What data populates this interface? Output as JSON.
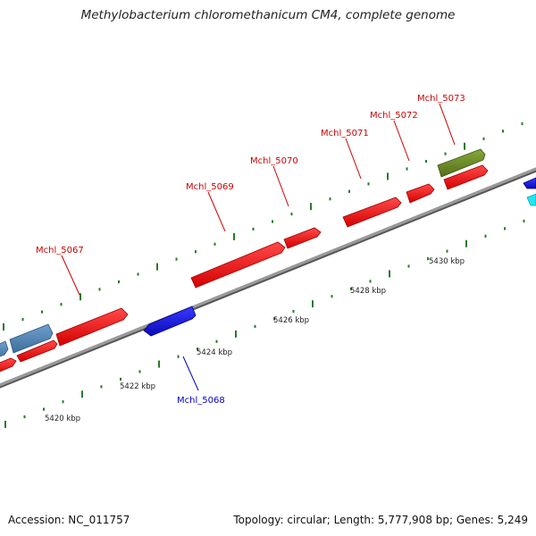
{
  "title": "Methylobacterium chloromethanicum CM4, complete genome",
  "footer": {
    "accession": "Accession: NC_011757",
    "summary": "Topology: circular; Length: 5,777,908 bp; Genes: 5,249"
  },
  "colors": {
    "forward_cds": "#ee1111",
    "reverse_cds": "#1515dd",
    "label_forward": "#cc0000",
    "label_reverse": "#0000cc",
    "steelblue_feature": "#4f83b4",
    "olive_feature": "#6b8a23",
    "cyan_feature": "#22e5f0",
    "backbone": "#888888",
    "tick": "#2a7a2a"
  },
  "gene_labels": [
    {
      "text": "Mchl_5067",
      "strand": "forward"
    },
    {
      "text": "Mchl_5068",
      "strand": "reverse"
    },
    {
      "text": "Mchl_5069",
      "strand": "forward"
    },
    {
      "text": "Mchl_5070",
      "strand": "forward"
    },
    {
      "text": "Mchl_5071",
      "strand": "forward"
    },
    {
      "text": "Mchl_5072",
      "strand": "forward"
    },
    {
      "text": "Mchl_5073",
      "strand": "forward"
    }
  ],
  "scale_labels": [
    "5420 kbp",
    "5422 kbp",
    "5424 kbp",
    "5426 kbp",
    "5428 kbp",
    "5430 kbp"
  ]
}
